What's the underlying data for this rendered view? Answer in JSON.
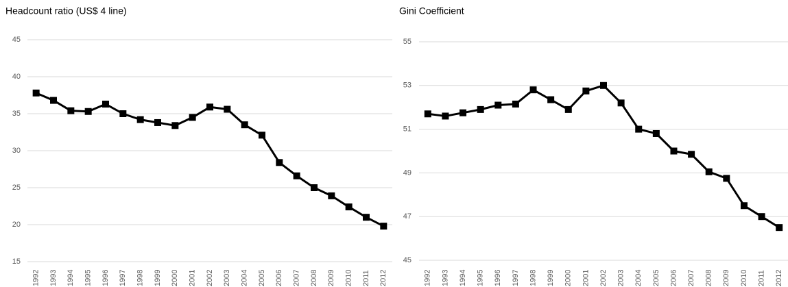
{
  "chart_data": [
    {
      "type": "line",
      "title": "Headcount ratio (US$ 4 line)",
      "categories": [
        "1992",
        "1993",
        "1994",
        "1995",
        "1996",
        "1997",
        "1998",
        "1999",
        "2000",
        "2001",
        "2002",
        "2003",
        "2004",
        "2005",
        "2006",
        "2007",
        "2008",
        "2009",
        "2010",
        "2011",
        "2012"
      ],
      "values": [
        37.8,
        36.8,
        35.4,
        35.3,
        36.3,
        35.0,
        34.2,
        33.8,
        33.4,
        34.5,
        35.9,
        35.6,
        33.5,
        32.1,
        28.4,
        26.6,
        25.0,
        23.9,
        22.4,
        21.0,
        19.8
      ],
      "color": "#000000",
      "ylim": [
        15,
        45
      ],
      "yticks": [
        15,
        20,
        25,
        30,
        35,
        40,
        45
      ],
      "grid": true
    },
    {
      "type": "line",
      "title": "Gini Coefficient",
      "categories": [
        "1992",
        "1993",
        "1994",
        "1995",
        "1996",
        "1997",
        "1998",
        "1999",
        "2000",
        "2001",
        "2002",
        "2003",
        "2004",
        "2005",
        "2006",
        "2007",
        "2008",
        "2009",
        "2010",
        "2011",
        "2012"
      ],
      "values": [
        51.7,
        51.6,
        51.75,
        51.9,
        52.1,
        52.15,
        52.8,
        52.35,
        51.9,
        52.75,
        53.0,
        52.2,
        51.0,
        50.8,
        50.0,
        49.85,
        49.05,
        48.75,
        47.5,
        47.0,
        46.5
      ],
      "color": "#000000",
      "ylim": [
        45,
        55
      ],
      "yticks": [
        45,
        47,
        49,
        51,
        53,
        55
      ],
      "grid": true
    }
  ]
}
